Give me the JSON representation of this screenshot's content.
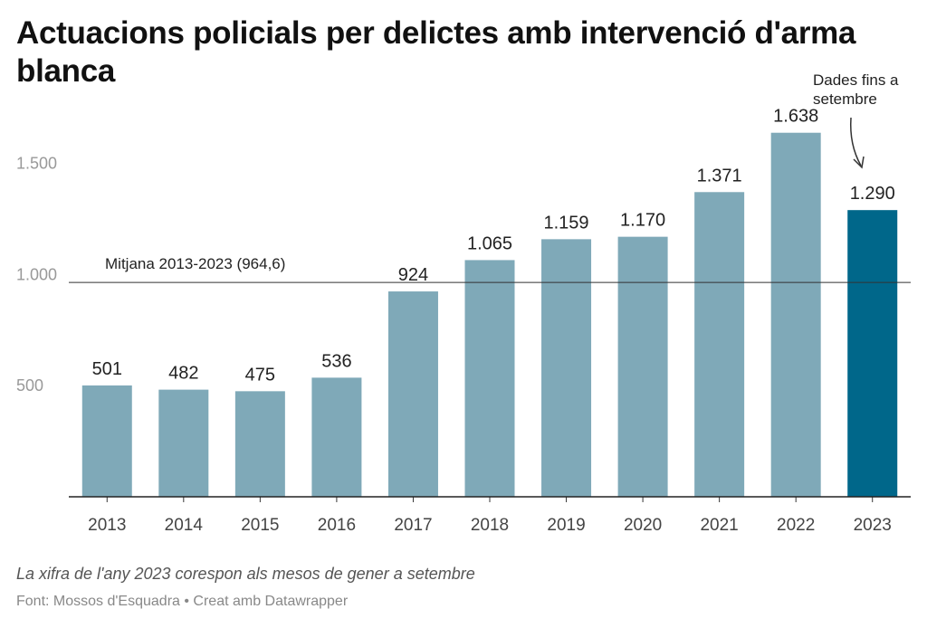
{
  "title": "Actuacions policials per delictes amb intervenció d'arma blanca",
  "note": "La xifra de l'any 2023 corespon als mesos de gener a setembre",
  "source": "Font: Mossos d'Esquadra • Creat amb Datawrapper",
  "chart_data": {
    "type": "bar",
    "categories": [
      "2013",
      "2014",
      "2015",
      "2016",
      "2017",
      "2018",
      "2019",
      "2020",
      "2021",
      "2022",
      "2023"
    ],
    "values": [
      501,
      482,
      475,
      536,
      924,
      1065,
      1159,
      1170,
      1371,
      1638,
      1290
    ],
    "value_labels": [
      "501",
      "482",
      "475",
      "536",
      "924",
      "1.065",
      "1.159",
      "1.170",
      "1.371",
      "1.638",
      "1.290"
    ],
    "yticks": [
      {
        "value": 500,
        "label": "500"
      },
      {
        "value": 1000,
        "label": "1.000"
      },
      {
        "value": 1500,
        "label": "1.500"
      }
    ],
    "ylim": [
      0,
      1700
    ],
    "bar_color": "#7fa9b8",
    "highlight_color": "#00678a",
    "highlight_category": "2023",
    "reference_line": {
      "value": 964.6,
      "label": "Mitjana 2013-2023 (964,6)"
    },
    "annotation": {
      "lines": [
        "Dades fins a",
        "setembre"
      ],
      "target": "2023"
    },
    "grid": false,
    "legend": "none"
  }
}
